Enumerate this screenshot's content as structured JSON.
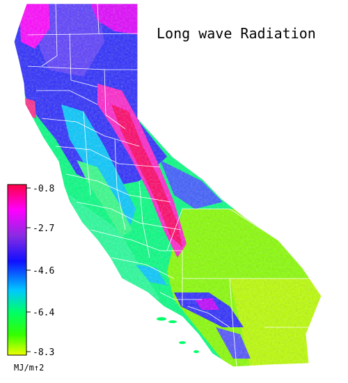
{
  "title": "Long wave Radiation",
  "legend": {
    "ticks": [
      "-0.8",
      "-2.7",
      "-4.6",
      "-6.4",
      "-8.3"
    ],
    "unit": "MJ/m↑2",
    "colors": [
      "#ff0044",
      "#ff00ff",
      "#8a2be2",
      "#1010ff",
      "#00c8ff",
      "#00ff66",
      "#33ff00",
      "#eeff00"
    ]
  },
  "map": {
    "region": "California",
    "boundary_color": "#ffffff"
  }
}
